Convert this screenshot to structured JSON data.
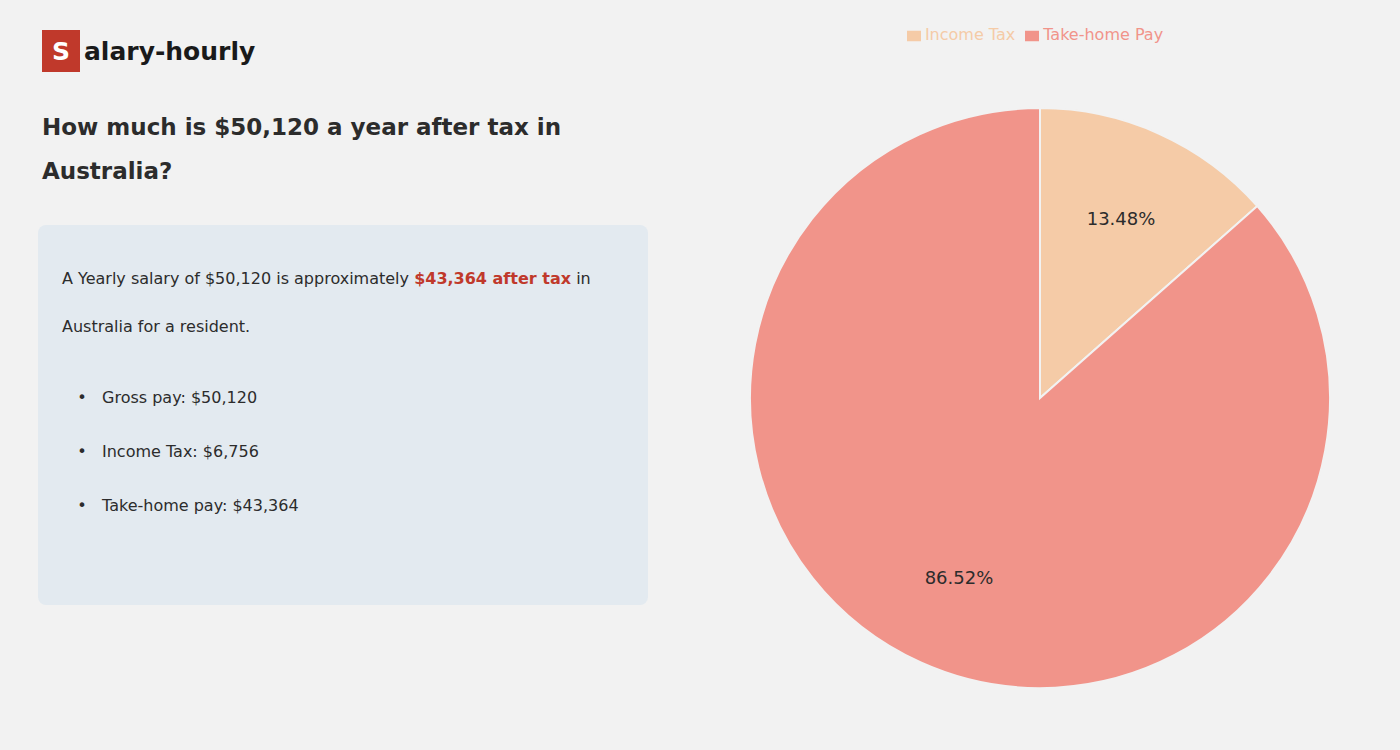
{
  "chart_data": {
    "type": "pie",
    "title": [
      "How much is $50,120 a year after tax in",
      "Australia?"
    ],
    "categories": [
      "Income Tax",
      "Take-home Pay"
    ],
    "values": [
      13.48,
      86.52
    ],
    "value_labels": [
      "13.48%",
      "86.52%"
    ],
    "colors": [
      "#f5cba7",
      "#f1948a"
    ],
    "data_labels": true,
    "legend": "top",
    "annotations": {
      "logo": {
        "box_text": "S",
        "text": "alary-hourly",
        "color": "#c0392b"
      },
      "body": [
        [
          {
            "text": "A Yearly salary of $50,120 is approximately "
          },
          {
            "text": "$43,364 after tax",
            "color": "#c0392b"
          },
          {
            "text": " in"
          }
        ],
        [
          {
            "text": "Australia for a resident."
          }
        ]
      ],
      "bullet_mark": "•",
      "bullets": [
        "Gross pay: $50,120",
        "Income Tax: $6,756",
        "Take-home pay: $43,364"
      ]
    }
  }
}
